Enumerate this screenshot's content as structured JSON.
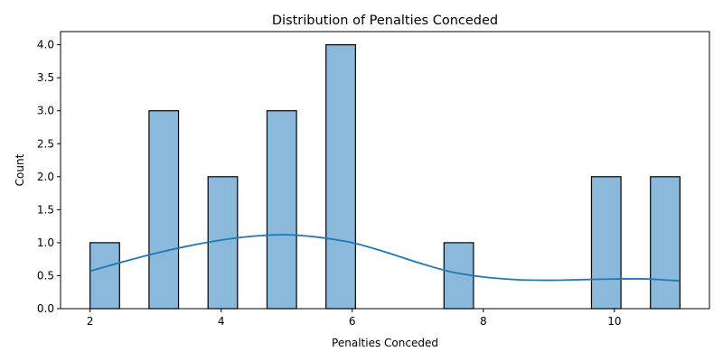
{
  "chart_data": {
    "type": "bar",
    "title": "Distribution of Penalties Conceded",
    "xlabel": "Penalties Conceded",
    "ylabel": "Count",
    "xlim": [
      1.55,
      11.45
    ],
    "ylim": [
      0,
      4.2
    ],
    "xticks": [
      2,
      4,
      6,
      8,
      10
    ],
    "yticks": [
      0.0,
      0.5,
      1.0,
      1.5,
      2.0,
      2.5,
      3.0,
      3.5,
      4.0
    ],
    "bin_width": 0.45,
    "bins": [
      {
        "start": 2.0,
        "count": 1
      },
      {
        "start": 2.9,
        "count": 3
      },
      {
        "start": 3.8,
        "count": 2
      },
      {
        "start": 4.7,
        "count": 3
      },
      {
        "start": 5.6,
        "count": 4
      },
      {
        "start": 7.4,
        "count": 1
      },
      {
        "start": 9.65,
        "count": 2
      },
      {
        "start": 10.55,
        "count": 2
      }
    ],
    "kde": {
      "x": [
        2.0,
        2.5,
        3.0,
        3.5,
        4.0,
        4.5,
        5.0,
        5.5,
        6.0,
        6.5,
        7.0,
        7.5,
        8.0,
        8.5,
        9.0,
        9.5,
        10.0,
        10.5,
        11.0
      ],
      "y": [
        0.57,
        0.71,
        0.84,
        0.95,
        1.04,
        1.1,
        1.12,
        1.08,
        1.0,
        0.86,
        0.7,
        0.56,
        0.48,
        0.44,
        0.43,
        0.44,
        0.45,
        0.45,
        0.42
      ]
    },
    "bar_color": "#8ab9db",
    "line_color": "#1f77b4",
    "grid": false,
    "legend": "none"
  }
}
